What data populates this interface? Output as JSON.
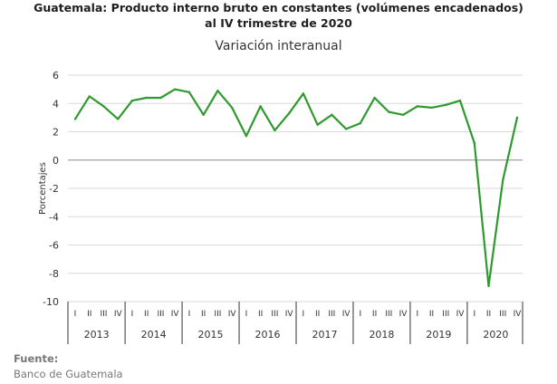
{
  "chart_data": {
    "type": "line",
    "title": "Guatemala: Producto interno bruto en constantes (volúmenes encadenados) al IV trimestre de 2020",
    "title_lines": [
      "Guatemala: Producto interno bruto en constantes (volúmenes encadenados)",
      "al IV trimestre de 2020"
    ],
    "subtitle": "Variación interanual",
    "ylabel": "Porcentajes",
    "xlabel": "",
    "ylim": [
      -10,
      6
    ],
    "yticks": [
      6,
      4,
      2,
      0,
      -2,
      -4,
      -6,
      -8,
      -10
    ],
    "grid": true,
    "legend": "none",
    "line_color": "#2e9a2e",
    "years": [
      "2013",
      "2014",
      "2015",
      "2016",
      "2017",
      "2018",
      "2019",
      "2020"
    ],
    "quarters": [
      "I",
      "II",
      "III",
      "IV"
    ],
    "series": [
      {
        "values": [
          2.9,
          4.5,
          3.8,
          2.9,
          4.2,
          4.4,
          4.4,
          5.0,
          4.8,
          3.2,
          4.9,
          3.7,
          1.7,
          3.8,
          2.1,
          3.3,
          4.7,
          2.5,
          3.2,
          2.2,
          2.6,
          4.4,
          3.4,
          3.2,
          3.8,
          3.7,
          3.9,
          4.2,
          1.2,
          -8.9,
          -1.4,
          3.0
        ]
      }
    ]
  },
  "source": {
    "label": "Fuente:",
    "text": "Banco de Guatemala"
  }
}
